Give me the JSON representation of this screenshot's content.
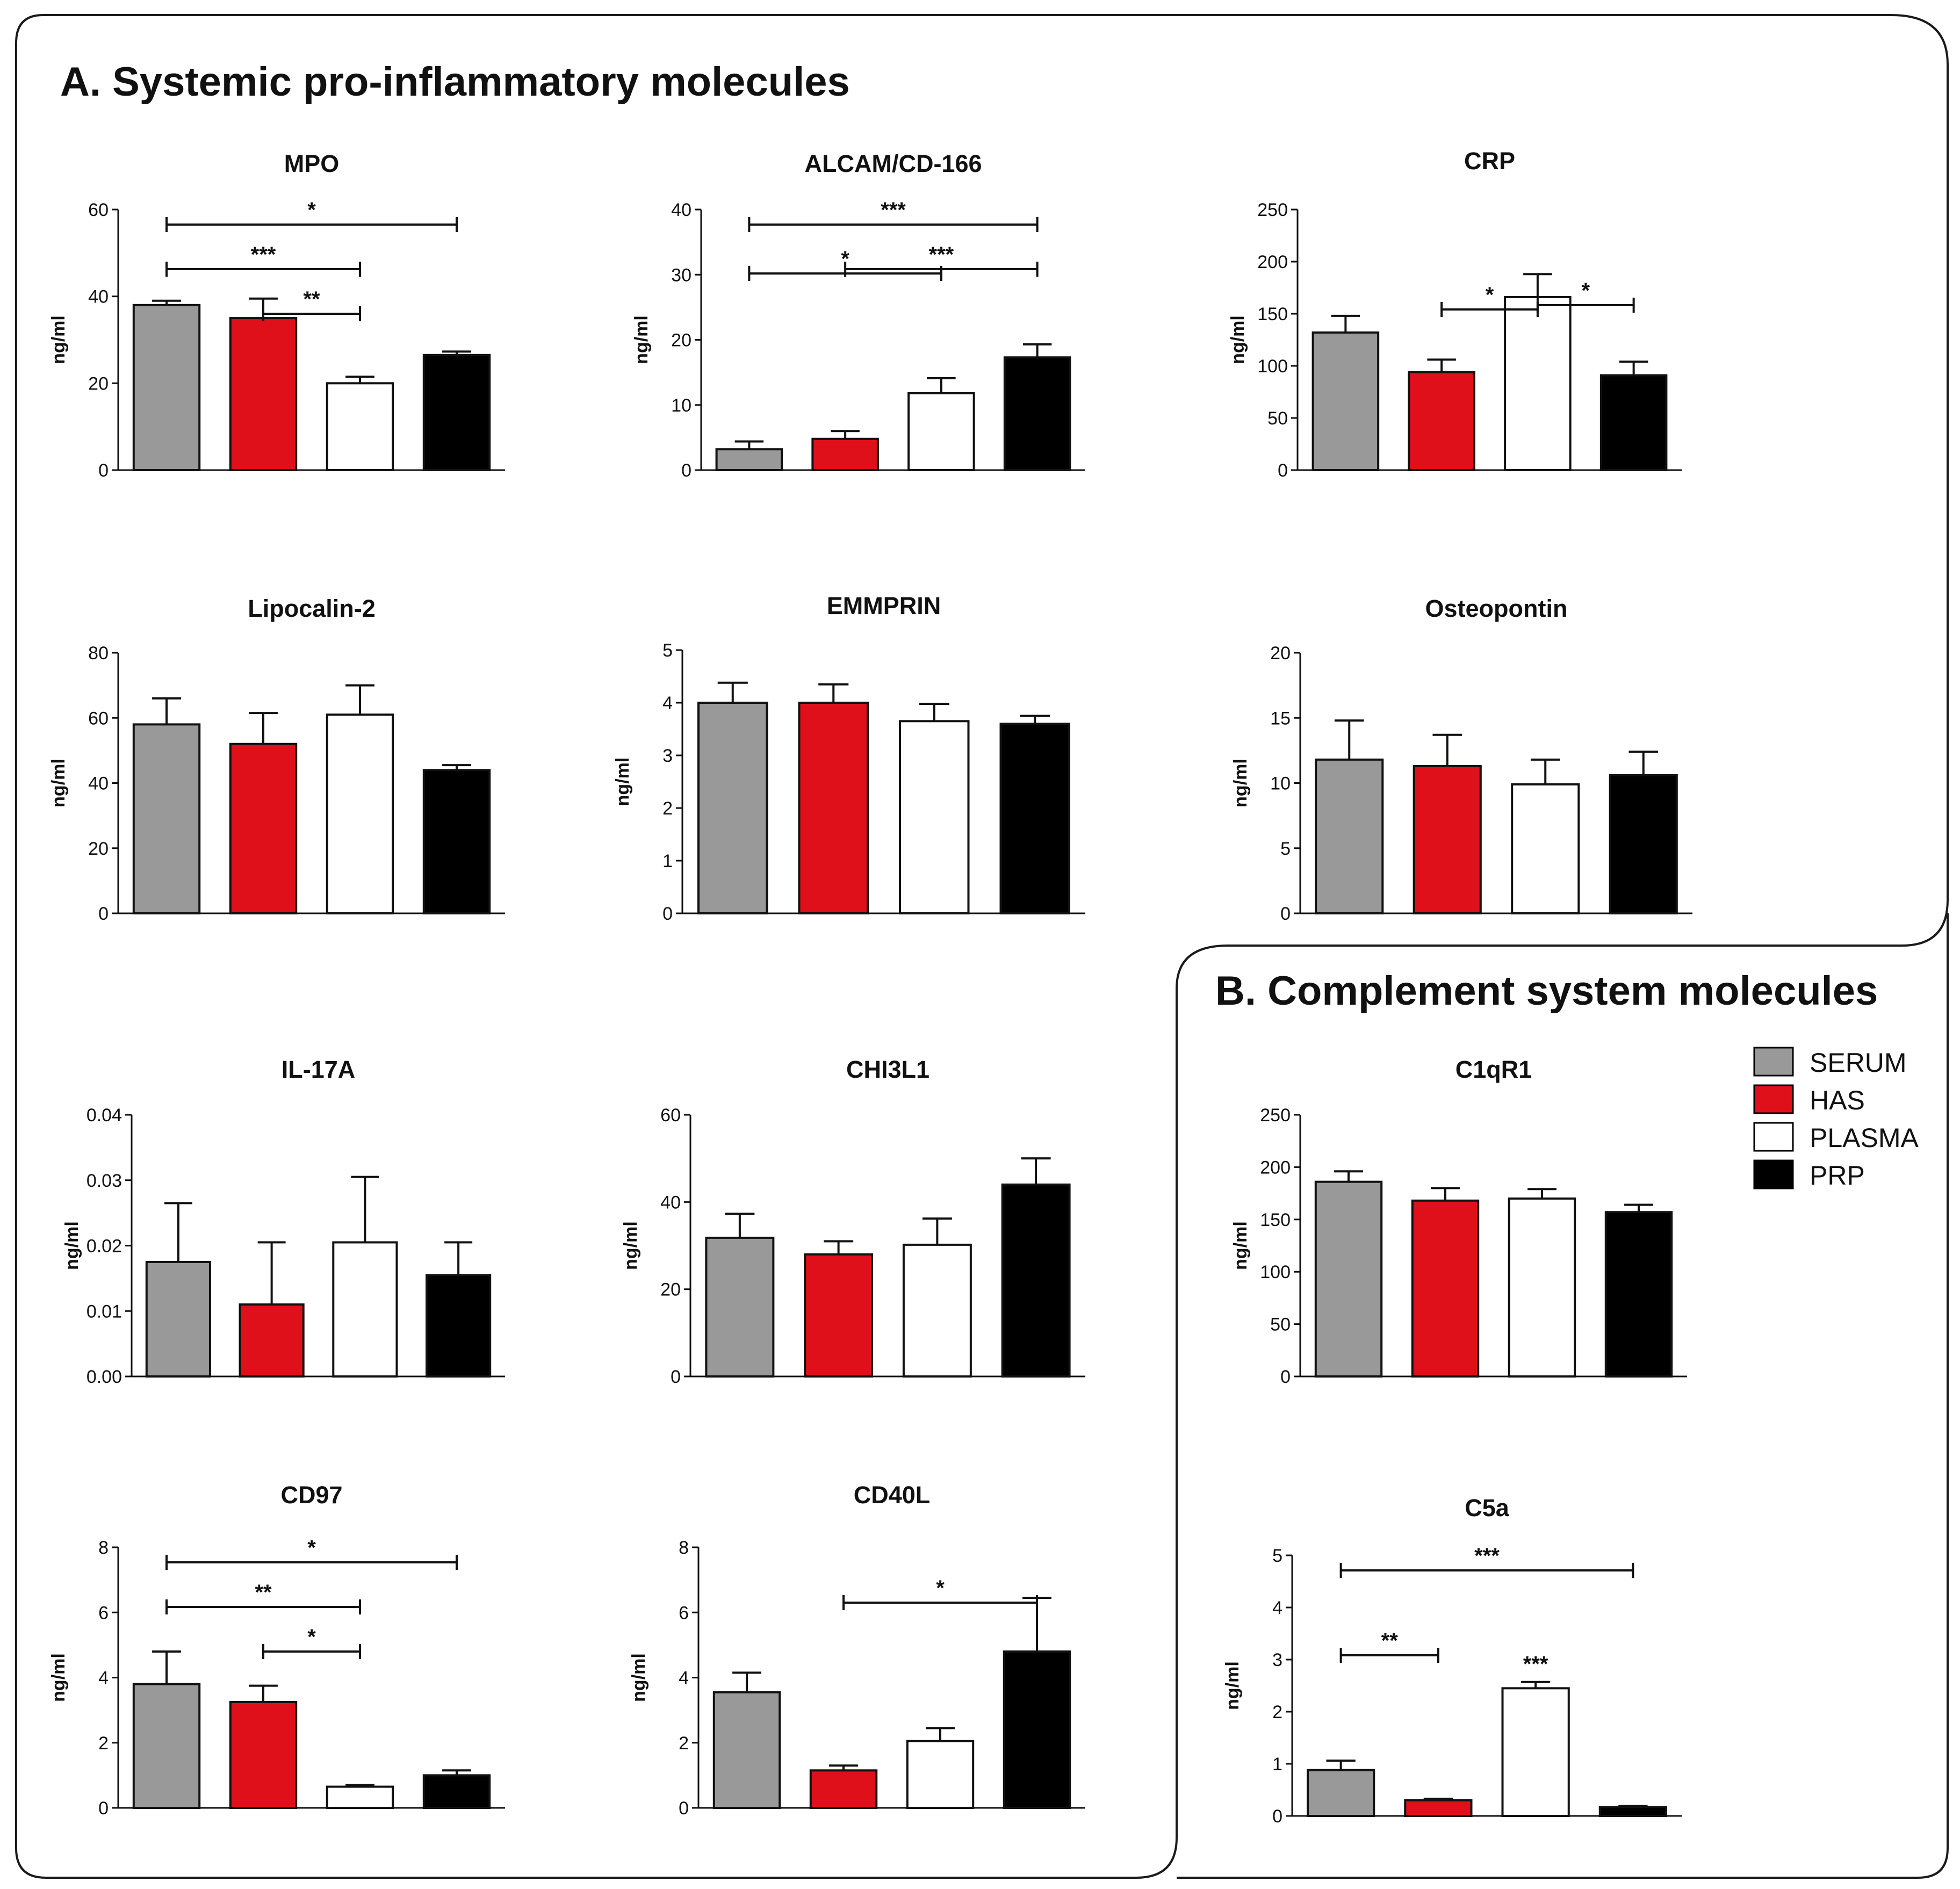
{
  "sections": {
    "a_title": "A. Systemic pro-inflammatory molecules",
    "b_title": "B. Complement system molecules"
  },
  "legend": [
    {
      "label": "SERUM",
      "color": "#999999"
    },
    {
      "label": "HAS",
      "color": "#e0101a"
    },
    {
      "label": "PLASMA",
      "color": "#ffffff"
    },
    {
      "label": "PRP",
      "color": "#000000"
    }
  ],
  "chart_data": [
    {
      "type": "bar",
      "title": "MPO",
      "ylabel": "ng/ml",
      "ylim": [
        0,
        60
      ],
      "yticks": [
        "0",
        "20",
        "40",
        "60"
      ],
      "categories": [
        "SERUM",
        "HAS",
        "PLASMA",
        "PRP"
      ],
      "values": [
        38,
        35,
        20,
        26.5
      ],
      "errors": [
        1,
        4.5,
        1.5,
        0.8
      ],
      "significance": [
        {
          "from": 0,
          "to": 3,
          "label": "*"
        },
        {
          "from": 0,
          "to": 2,
          "label": "***"
        },
        {
          "from": 1,
          "to": 2,
          "label": "**"
        }
      ]
    },
    {
      "type": "bar",
      "title": "ALCAM/CD-166",
      "ylabel": "ng/ml",
      "ylim": [
        0,
        40
      ],
      "yticks": [
        "0",
        "10",
        "20",
        "30",
        "40"
      ],
      "categories": [
        "SERUM",
        "HAS",
        "PLASMA",
        "PRP"
      ],
      "values": [
        3.2,
        4.8,
        11.8,
        17.3
      ],
      "errors": [
        1.2,
        1.2,
        2.3,
        2
      ],
      "significance": [
        {
          "from": 0,
          "to": 3,
          "label": "***"
        },
        {
          "from": 1,
          "to": 3,
          "label": "***"
        },
        {
          "from": 0,
          "to": 2,
          "label": "*"
        }
      ]
    },
    {
      "type": "bar",
      "title": "CRP",
      "ylabel": "ng/ml",
      "ylim": [
        0,
        250
      ],
      "yticks": [
        "0",
        "50",
        "100",
        "150",
        "200",
        "250"
      ],
      "categories": [
        "SERUM",
        "HAS",
        "PLASMA",
        "PRP"
      ],
      "values": [
        132,
        94,
        166,
        91
      ],
      "errors": [
        16,
        12,
        22,
        13
      ],
      "significance": [
        {
          "from": 2,
          "to": 3,
          "label": "*"
        },
        {
          "from": 1,
          "to": 2,
          "label": "*"
        }
      ]
    },
    {
      "type": "bar",
      "title": "Lipocalin-2",
      "ylabel": "ng/ml",
      "ylim": [
        0,
        80
      ],
      "yticks": [
        "0",
        "20",
        "40",
        "60",
        "80"
      ],
      "categories": [
        "SERUM",
        "HAS",
        "PLASMA",
        "PRP"
      ],
      "values": [
        58,
        52,
        61,
        44
      ],
      "errors": [
        8,
        9.5,
        9,
        1.5
      ],
      "significance": []
    },
    {
      "type": "bar",
      "title": "EMMPRIN",
      "ylabel": "ng/ml",
      "ylim": [
        0,
        5
      ],
      "yticks": [
        "0",
        "1",
        "2",
        "3",
        "4",
        "5"
      ],
      "categories": [
        "SERUM",
        "HAS",
        "PLASMA",
        "PRP"
      ],
      "values": [
        4.0,
        4.0,
        3.65,
        3.6
      ],
      "errors": [
        0.38,
        0.35,
        0.33,
        0.15
      ],
      "significance": []
    },
    {
      "type": "bar",
      "title": "Osteopontin",
      "ylabel": "ng/ml",
      "ylim": [
        0,
        20
      ],
      "yticks": [
        "0",
        "5",
        "10",
        "15",
        "20"
      ],
      "categories": [
        "SERUM",
        "HAS",
        "PLASMA",
        "PRP"
      ],
      "values": [
        11.8,
        11.3,
        9.9,
        10.6
      ],
      "errors": [
        3,
        2.4,
        1.9,
        1.8
      ],
      "significance": []
    },
    {
      "type": "bar",
      "title": "IL-17A",
      "ylabel": "ng/ml",
      "ylim": [
        0,
        0.04
      ],
      "yticks": [
        "0.00",
        "0.01",
        "0.02",
        "0.03",
        "0.04"
      ],
      "categories": [
        "SERUM",
        "HAS",
        "PLASMA",
        "PRP"
      ],
      "values": [
        0.0175,
        0.011,
        0.0205,
        0.0155
      ],
      "errors": [
        0.009,
        0.0095,
        0.01,
        0.005
      ],
      "significance": []
    },
    {
      "type": "bar",
      "title": "CHI3L1",
      "ylabel": "ng/ml",
      "ylim": [
        0,
        60
      ],
      "yticks": [
        "0",
        "20",
        "40",
        "60"
      ],
      "categories": [
        "SERUM",
        "HAS",
        "PLASMA",
        "PRP"
      ],
      "values": [
        31.8,
        28,
        30.2,
        44
      ],
      "errors": [
        5.5,
        3,
        6,
        6
      ],
      "significance": []
    },
    {
      "type": "bar",
      "title": "CD97",
      "ylabel": "ng/ml",
      "ylim": [
        0,
        8
      ],
      "yticks": [
        "0",
        "2",
        "4",
        "6",
        "8"
      ],
      "categories": [
        "SERUM",
        "HAS",
        "PLASMA",
        "PRP"
      ],
      "values": [
        3.8,
        3.25,
        0.65,
        1.0
      ],
      "errors": [
        1,
        0.5,
        0.05,
        0.15
      ],
      "significance": [
        {
          "from": 0,
          "to": 3,
          "label": "*"
        },
        {
          "from": 0,
          "to": 2,
          "label": "**"
        },
        {
          "from": 1,
          "to": 2,
          "label": "*"
        }
      ]
    },
    {
      "type": "bar",
      "title": "CD40L",
      "ylabel": "ng/ml",
      "ylim": [
        0,
        8
      ],
      "yticks": [
        "0",
        "2",
        "4",
        "6",
        "8"
      ],
      "categories": [
        "SERUM",
        "HAS",
        "PLASMA",
        "PRP"
      ],
      "values": [
        3.55,
        1.15,
        2.05,
        4.8
      ],
      "errors": [
        0.6,
        0.15,
        0.4,
        1.65
      ],
      "significance": [
        {
          "from": 1,
          "to": 3,
          "label": "*"
        }
      ]
    },
    {
      "type": "bar",
      "title": "C1qR1",
      "ylabel": "ng/ml",
      "ylim": [
        0,
        250
      ],
      "yticks": [
        "0",
        "50",
        "100",
        "150",
        "200",
        "250"
      ],
      "categories": [
        "SERUM",
        "HAS",
        "PLASMA",
        "PRP"
      ],
      "values": [
        186,
        168,
        170,
        157
      ],
      "errors": [
        10,
        12,
        9,
        7
      ],
      "significance": []
    },
    {
      "type": "bar",
      "title": "C5a",
      "ylabel": "ng/ml",
      "ylim": [
        0,
        5
      ],
      "yticks": [
        "0",
        "1",
        "2",
        "3",
        "4",
        "5"
      ],
      "categories": [
        "SERUM",
        "HAS",
        "PLASMA",
        "PRP"
      ],
      "values": [
        0.88,
        0.3,
        2.45,
        0.17
      ],
      "errors": [
        0.18,
        0.03,
        0.12,
        0.02
      ],
      "significance": [
        {
          "from": 0,
          "to": 3,
          "label": "***"
        },
        {
          "from": 0,
          "to": 1,
          "label": "**"
        },
        {
          "from": 2,
          "to": 2,
          "label": "***"
        }
      ]
    }
  ]
}
